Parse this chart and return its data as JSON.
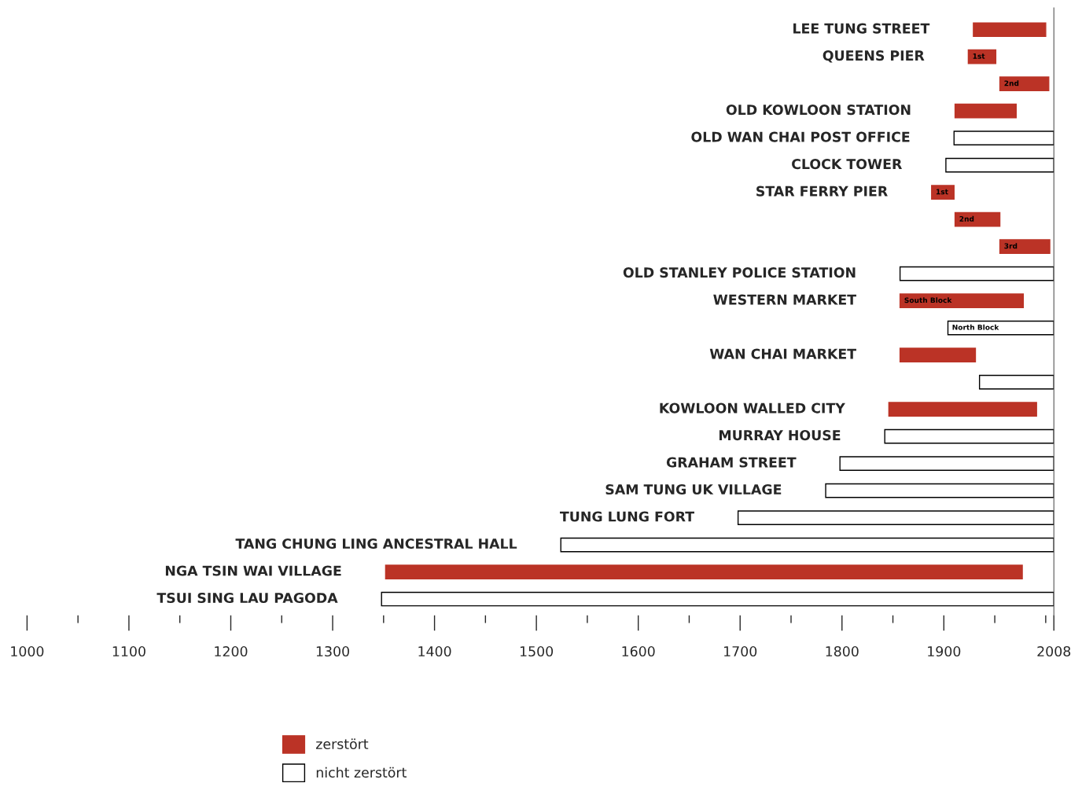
{
  "chart_data": {
    "type": "bar",
    "orientation": "horizontal",
    "categories": [
      "LEE TUNG STREET",
      "QUEENS PIER",
      null,
      "OLD KOWLOON STATION",
      "OLD WAN CHAI POST OFFICE",
      "CLOCK TOWER",
      "STAR FERRY PIER",
      null,
      null,
      "OLD STANLEY POLICE STATION",
      "WESTERN MARKET",
      null,
      "WAN CHAI MARKET",
      null,
      "KOWLOON WALLED CITY",
      "MURRAY HOUSE",
      "GRAHAM STREET",
      "SAM TUNG UK VILLAGE",
      "TUNG LUNG FORT",
      "TANG CHUNG LING ANCESTRAL HALL",
      "NGA TSIN WAI VILLAGE",
      "TSUI SING LAU PAGODA"
    ],
    "series": [
      {
        "name": "zerstört",
        "color": "#bb3326",
        "base": [
          1929,
          null,
          null,
          1911,
          null,
          null,
          null,
          null,
          null,
          null,
          null,
          null,
          1857,
          null,
          1846,
          null,
          null,
          null,
          null,
          null,
          1352,
          null
        ],
        "values": [
          71,
          null,
          null,
          60,
          null,
          null,
          null,
          null,
          null,
          null,
          null,
          null,
          74,
          null,
          145,
          null,
          null,
          null,
          null,
          null,
          625,
          null
        ]
      },
      {
        "name": "nicht zerstört",
        "color": "#ffffff",
        "base": [
          null,
          null,
          null,
          null,
          1910,
          1902,
          null,
          null,
          null,
          1857,
          null,
          null,
          null,
          1935,
          null,
          1842,
          1798,
          1784,
          1698,
          1524,
          null,
          1348
        ],
        "values": [
          null,
          null,
          null,
          null,
          98,
          106,
          null,
          null,
          null,
          151,
          null,
          null,
          null,
          73,
          null,
          166,
          210,
          224,
          310,
          484,
          null,
          660
        ]
      },
      {
        "name": "1st",
        "color": "#bb3326",
        "base": [
          null,
          1924,
          null,
          null,
          null,
          null,
          1888,
          null,
          null,
          null,
          null,
          null,
          null,
          null,
          null,
          null,
          null,
          null,
          null,
          null,
          null,
          null
        ],
        "values": [
          null,
          27,
          null,
          null,
          null,
          null,
          22,
          null,
          null,
          null,
          null,
          null,
          null,
          null,
          null,
          null,
          null,
          null,
          null,
          null,
          null,
          null
        ]
      },
      {
        "name": "2nd",
        "color": "#bb3326",
        "base": [
          null,
          null,
          1955,
          null,
          null,
          null,
          null,
          1911,
          null,
          null,
          null,
          null,
          null,
          null,
          null,
          null,
          null,
          null,
          null,
          null,
          null,
          null
        ],
        "values": [
          null,
          null,
          48,
          null,
          null,
          null,
          null,
          44,
          null,
          null,
          null,
          null,
          null,
          null,
          null,
          null,
          null,
          null,
          null,
          null,
          null,
          null
        ]
      },
      {
        "name": "3rd",
        "color": "#bb3326",
        "base": [
          null,
          null,
          null,
          null,
          null,
          null,
          null,
          null,
          1955,
          null,
          null,
          null,
          null,
          null,
          null,
          null,
          null,
          null,
          null,
          null,
          null,
          null
        ],
        "values": [
          null,
          null,
          null,
          null,
          null,
          null,
          null,
          null,
          49,
          null,
          null,
          null,
          null,
          null,
          null,
          null,
          null,
          null,
          null,
          null,
          null,
          null
        ]
      },
      {
        "name": "South Block",
        "color": "#bb3326",
        "base": [
          null,
          null,
          null,
          null,
          null,
          null,
          null,
          null,
          null,
          null,
          1857,
          null,
          null,
          null,
          null,
          null,
          null,
          null,
          null,
          null,
          null,
          null
        ],
        "values": [
          null,
          null,
          null,
          null,
          null,
          null,
          null,
          null,
          null,
          null,
          121,
          null,
          null,
          null,
          null,
          null,
          null,
          null,
          null,
          null,
          null,
          null
        ]
      },
      {
        "name": "North Block",
        "color": "#ffffff",
        "base": [
          null,
          null,
          null,
          null,
          null,
          null,
          null,
          null,
          null,
          null,
          null,
          1904,
          null,
          null,
          null,
          null,
          null,
          null,
          null,
          null,
          null,
          null
        ],
        "values": [
          null,
          null,
          null,
          null,
          null,
          null,
          null,
          null,
          null,
          null,
          null,
          104,
          null,
          null,
          null,
          null,
          null,
          null,
          null,
          null,
          null,
          null
        ]
      }
    ],
    "xlim": [
      1000,
      2008
    ],
    "xticks": [
      1000,
      {
        "value": 1050,
        "label": null
      },
      1100,
      {
        "value": 1150,
        "label": null
      },
      1200,
      {
        "value": 1250,
        "label": null
      },
      1300,
      {
        "value": 1350,
        "label": null
      },
      1400,
      {
        "value": 1450,
        "label": null
      },
      1500,
      {
        "value": 1550,
        "label": null
      },
      1600,
      {
        "value": 1650,
        "label": null
      },
      1700,
      {
        "value": 1750,
        "label": null
      },
      1800,
      {
        "value": 1850,
        "label": null
      },
      1900,
      {
        "value": 1950,
        "label": null
      },
      {
        "value": 2000,
        "label": null
      },
      2008
    ],
    "grid": false,
    "legend": "bottom"
  }
}
